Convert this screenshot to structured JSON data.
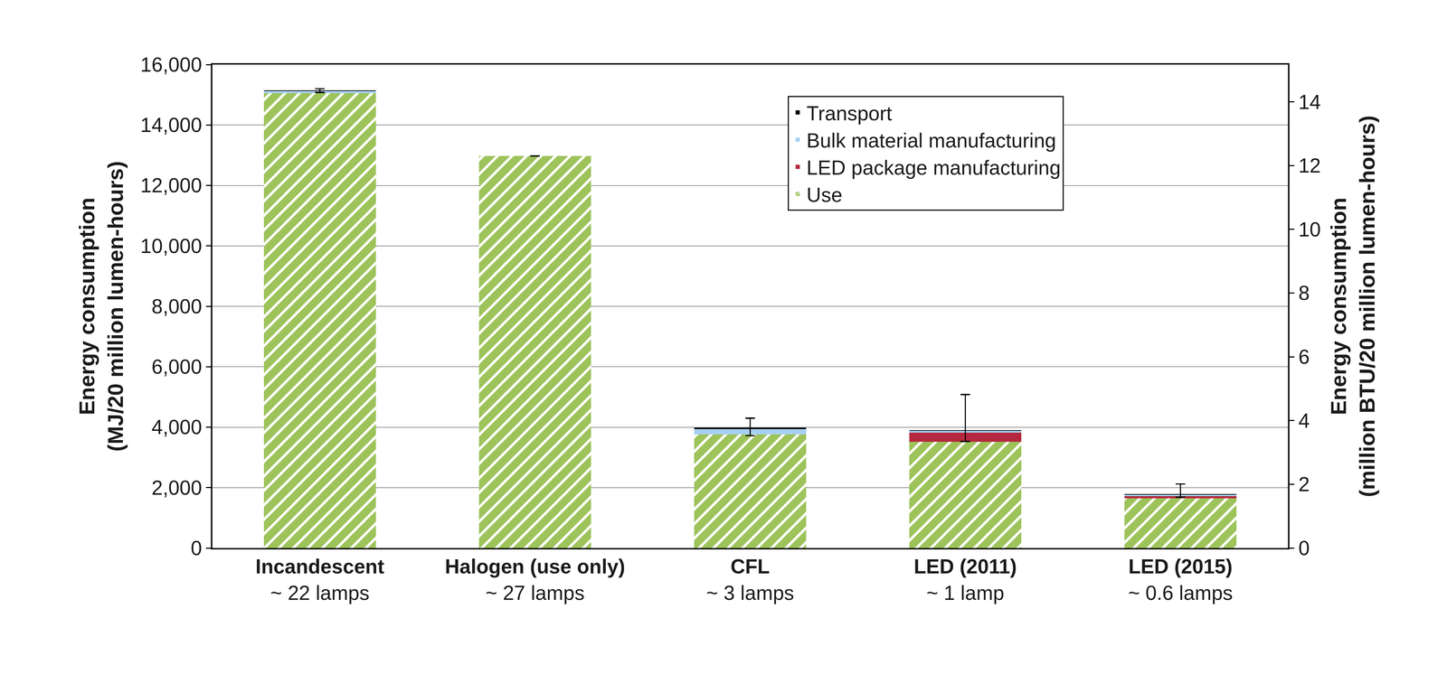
{
  "chart_data": {
    "type": "bar",
    "stacked": true,
    "grid": true,
    "legend": "upper right",
    "categories": [
      "Incandescent",
      "Halogen (use only)",
      "CFL",
      "LED (2011)",
      "LED (2015)"
    ],
    "category_notes": [
      "~ 22 lamps",
      "~ 27 lamps",
      "~ 3 lamps",
      "~ 1 lamp",
      "~ 0.6 lamps"
    ],
    "y_label": [
      "Energy consumption",
      "(MJ/20 million lumen-hours)"
    ],
    "y2_label": [
      "Energy consumption",
      "(million BTU/20 million lumen-hours)"
    ],
    "ylim": [
      0,
      16000
    ],
    "yticks": [
      0,
      {
        "value": 2000,
        "label": "2,000"
      },
      {
        "value": 4000,
        "label": "4,000"
      },
      {
        "value": 6000,
        "label": "6,000"
      },
      {
        "value": 8000,
        "label": "8,000"
      },
      {
        "value": 10000,
        "label": "10,000"
      },
      {
        "value": 12000,
        "label": "12,000"
      },
      {
        "value": 14000,
        "label": "14,000"
      },
      {
        "value": 16000,
        "label": "16,000"
      }
    ],
    "y2lim": [
      0,
      15.17
    ],
    "y2ticks": [
      0,
      2,
      4,
      6,
      8,
      10,
      12,
      14
    ],
    "series": [
      {
        "name": "Use",
        "color": "#9dc35a",
        "marker": "hatched",
        "values": [
          15050,
          12970,
          3760,
          3520,
          1650
        ]
      },
      {
        "name": "LED package manufacturing",
        "color": "#b5283f",
        "values": [
          0,
          0,
          0,
          300,
          70
        ]
      },
      {
        "name": "Bulk material manufacturing",
        "color": "#a8d0f0",
        "values": [
          80,
          0,
          180,
          60,
          50
        ]
      },
      {
        "name": "Transport",
        "color": "#000000",
        "values": [
          10,
          0,
          40,
          20,
          20
        ],
        "error_plus": [
          60,
          null,
          320,
          1180,
          330
        ],
        "error_minus": [
          60,
          null,
          260,
          370,
          110
        ]
      }
    ]
  }
}
